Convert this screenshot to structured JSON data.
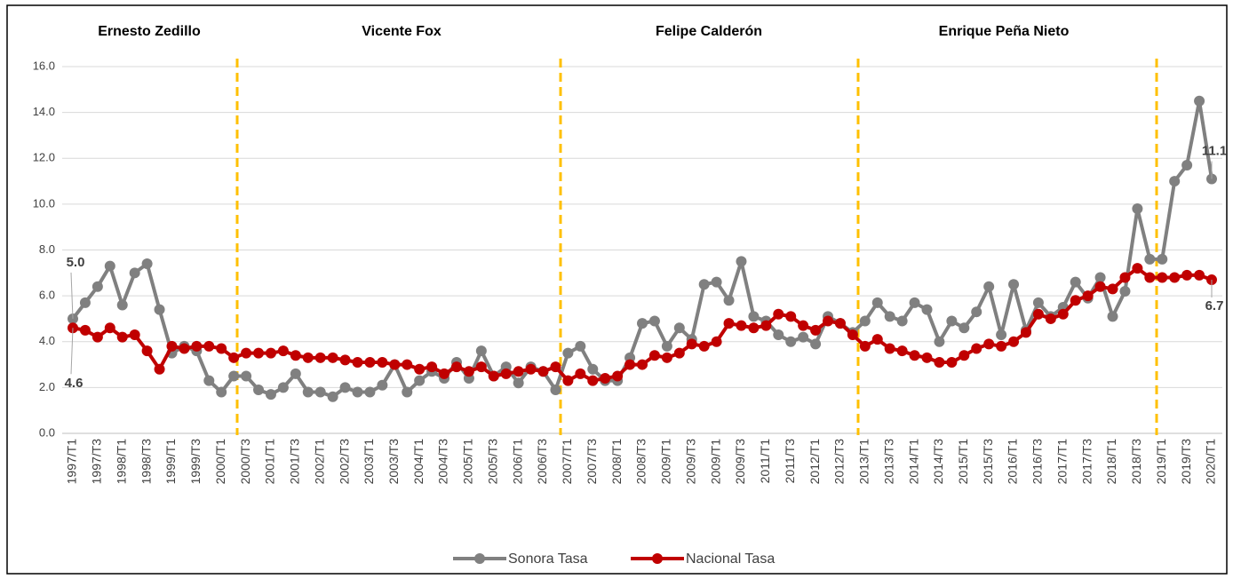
{
  "chart_data": {
    "type": "line",
    "annotations": [
      {
        "text": "Ernesto Zedillo"
      },
      {
        "text": "Vicente Fox"
      },
      {
        "text": "Felipe Calderón"
      },
      {
        "text": "Enrique Peña Nieto"
      }
    ],
    "categories": [
      "1997/T1",
      null,
      "1997/T3",
      null,
      "1998/T1",
      null,
      "1998/T3",
      null,
      "1999/T1",
      null,
      "1999/T3",
      null,
      "2000/T1",
      null,
      "2000/T3",
      null,
      "2001/T1",
      null,
      "2001/T3",
      null,
      "2002/T1",
      null,
      "2002/T3",
      null,
      "2003/T1",
      null,
      "2003/T3",
      null,
      "2004/T1",
      null,
      "2004/T3",
      null,
      "2005/T1",
      null,
      "2005/T3",
      null,
      "2006/T1",
      null,
      "2006/T3",
      null,
      "2007/T1",
      null,
      "2007/T3",
      null,
      "2008/T1",
      null,
      "2008/T3",
      null,
      "2009/T1",
      null,
      "2009/T3",
      null,
      "2009/T1",
      null,
      "2009/T3",
      null,
      "2011/T1",
      null,
      "2011/T3",
      null,
      "2012/T1",
      null,
      "2012/T3",
      null,
      "2013/T1",
      null,
      "2013/T3",
      null,
      "2014/T1",
      null,
      "2014/T3",
      null,
      "2015/T1",
      null,
      "2015/T3",
      null,
      "2016/T1",
      null,
      "2016/T3",
      null,
      "2017/T1",
      null,
      "2017/T3",
      null,
      "2018/T1",
      null,
      "2018/T3",
      null,
      "2019/T1",
      null,
      "2019/T3",
      null,
      "2020/T1"
    ],
    "series": [
      {
        "name": "Sonora Tasa",
        "color": "#808080",
        "values": [
          5.0,
          5.7,
          6.4,
          7.3,
          5.6,
          7.0,
          7.4,
          5.4,
          3.5,
          3.8,
          3.6,
          2.3,
          1.8,
          2.5,
          2.5,
          1.9,
          1.7,
          2.0,
          2.6,
          1.8,
          1.8,
          1.6,
          2.0,
          1.8,
          1.8,
          2.1,
          3.0,
          1.8,
          2.3,
          2.7,
          2.4,
          3.1,
          2.4,
          3.6,
          2.5,
          2.9,
          2.2,
          2.9,
          2.7,
          1.9,
          3.5,
          3.8,
          2.8,
          2.3,
          2.3,
          3.3,
          4.8,
          4.9,
          3.8,
          4.6,
          4.1,
          6.5,
          6.6,
          5.8,
          7.5,
          5.1,
          4.9,
          4.3,
          4.0,
          4.2,
          3.9,
          5.1,
          4.8,
          4.4,
          4.9,
          5.7,
          5.1,
          4.9,
          5.7,
          5.4,
          4.0,
          4.9,
          4.6,
          5.3,
          6.4,
          4.3,
          6.5,
          4.5,
          5.7,
          5.1,
          5.5,
          6.6,
          5.9,
          6.8,
          5.1,
          6.2,
          9.8,
          7.6,
          7.6,
          11.0,
          11.7,
          14.5,
          11.1
        ],
        "value_labels": [
          "5.0",
          null,
          null,
          null,
          null,
          null,
          null,
          null,
          null,
          null,
          null,
          null,
          null,
          null,
          null,
          null,
          null,
          null,
          null,
          null,
          null,
          null,
          null,
          null,
          null,
          null,
          null,
          null,
          null,
          null,
          null,
          null,
          null,
          null,
          null,
          null,
          null,
          null,
          null,
          null,
          null,
          null,
          null,
          null,
          null,
          null,
          null,
          null,
          null,
          null,
          null,
          null,
          null,
          null,
          null,
          null,
          null,
          null,
          null,
          null,
          null,
          null,
          null,
          null,
          null,
          null,
          null,
          null,
          null,
          null,
          null,
          null,
          null,
          null,
          null,
          null,
          null,
          null,
          null,
          null,
          null,
          null,
          null,
          null,
          null,
          null,
          null,
          null,
          null,
          null,
          null,
          null,
          "11.1"
        ]
      },
      {
        "name": "Nacional Tasa",
        "color": "#c00000",
        "values": [
          4.6,
          4.5,
          4.2,
          4.6,
          4.2,
          4.3,
          3.6,
          2.8,
          3.8,
          3.7,
          3.8,
          3.8,
          3.7,
          3.3,
          3.5,
          3.5,
          3.5,
          3.6,
          3.4,
          3.3,
          3.3,
          3.3,
          3.2,
          3.1,
          3.1,
          3.1,
          3.0,
          3.0,
          2.8,
          2.9,
          2.6,
          2.9,
          2.7,
          2.9,
          2.5,
          2.6,
          2.7,
          2.8,
          2.7,
          2.9,
          2.3,
          2.6,
          2.3,
          2.4,
          2.5,
          3.0,
          3.0,
          3.4,
          3.3,
          3.5,
          3.9,
          3.8,
          4.0,
          4.8,
          4.7,
          4.6,
          4.7,
          5.2,
          5.1,
          4.7,
          4.5,
          4.9,
          4.8,
          4.3,
          3.8,
          4.1,
          3.7,
          3.6,
          3.4,
          3.3,
          3.1,
          3.1,
          3.4,
          3.7,
          3.9,
          3.8,
          4.0,
          4.4,
          5.2,
          5.0,
          5.2,
          5.8,
          6.0,
          6.4,
          6.3,
          6.8,
          7.2,
          6.8,
          6.8,
          6.8,
          6.9,
          6.9,
          6.7
        ],
        "value_labels": [
          "4.6",
          null,
          null,
          null,
          null,
          null,
          null,
          null,
          null,
          null,
          null,
          null,
          null,
          null,
          null,
          null,
          null,
          null,
          null,
          null,
          null,
          null,
          null,
          null,
          null,
          null,
          null,
          null,
          null,
          null,
          null,
          null,
          null,
          null,
          null,
          null,
          null,
          null,
          null,
          null,
          null,
          null,
          null,
          null,
          null,
          null,
          null,
          null,
          null,
          null,
          null,
          null,
          null,
          null,
          null,
          null,
          null,
          null,
          null,
          null,
          null,
          null,
          null,
          null,
          null,
          null,
          null,
          null,
          null,
          null,
          null,
          null,
          null,
          null,
          null,
          null,
          null,
          null,
          null,
          null,
          null,
          null,
          null,
          null,
          null,
          null,
          null,
          null,
          null,
          null,
          null,
          null,
          "6.7"
        ]
      }
    ],
    "ylim": [
      0,
      16
    ],
    "yticks": [
      {
        "value": 0,
        "label": "0.0"
      },
      {
        "value": 2,
        "label": "2.0"
      },
      {
        "value": 4,
        "label": "4.0"
      },
      {
        "value": 6,
        "label": "6.0"
      },
      {
        "value": 8,
        "label": "8.0"
      },
      {
        "value": 10,
        "label": "10.0"
      },
      {
        "value": 12,
        "label": "12.0"
      },
      {
        "value": 14,
        "label": "14.0"
      },
      {
        "value": 16,
        "label": "16.0"
      }
    ],
    "grid": true,
    "legend": "bottom"
  }
}
